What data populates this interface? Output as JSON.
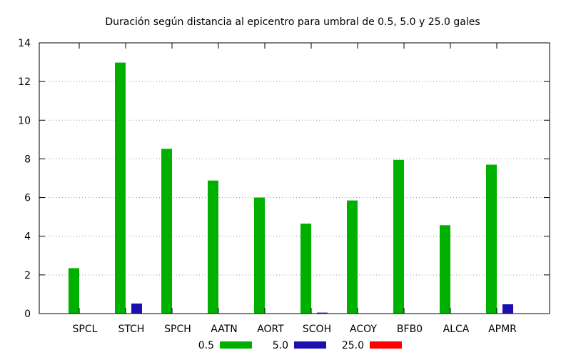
{
  "chart_data": {
    "type": "bar",
    "title": "Duración según distancia al epicentro para umbral de 0.5, 5.0 y 25.0 gales",
    "xlabel": "",
    "ylabel": "",
    "ylim": [
      0,
      14
    ],
    "yticks": [
      0,
      2,
      4,
      6,
      8,
      10,
      12,
      14
    ],
    "grid": "horizontal-dotted",
    "legend": "bottom",
    "categories": [
      "SPCL",
      "STCH",
      "SPCH",
      "AATN",
      "AORT",
      "SCOH",
      "ACOY",
      "BFB0",
      "ALCA",
      "APMR"
    ],
    "series": [
      {
        "name": "0.5",
        "color": "#00b000",
        "values": [
          2.35,
          12.98,
          8.52,
          6.88,
          6.0,
          4.65,
          5.85,
          7.95,
          4.57,
          7.7
        ]
      },
      {
        "name": "5.0",
        "color": "#1c0fb0",
        "values": [
          0,
          0.52,
          0,
          0,
          0,
          0.05,
          0,
          0,
          0,
          0.48
        ]
      },
      {
        "name": "25.0",
        "color": "#ff0000",
        "values": [
          0,
          0,
          0,
          0,
          0,
          0,
          0,
          0,
          0,
          0
        ]
      }
    ]
  }
}
